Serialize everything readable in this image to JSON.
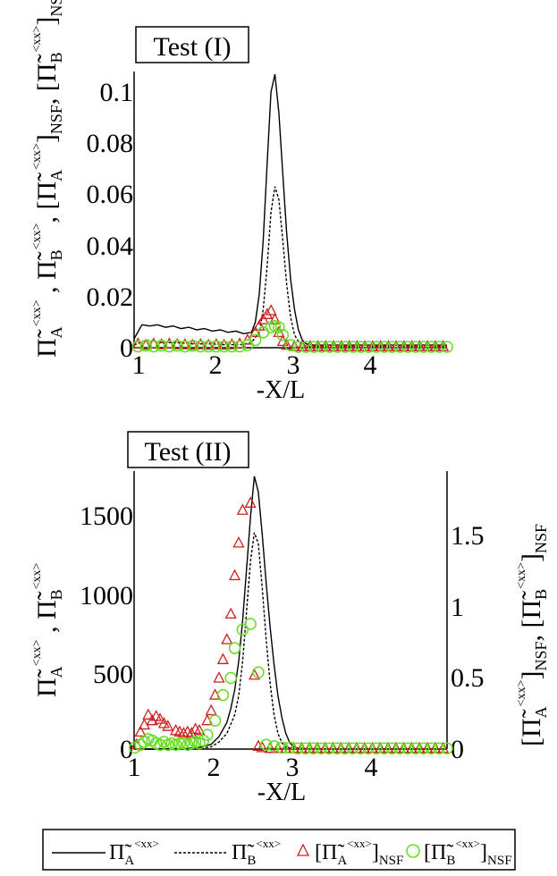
{
  "chart_data": [
    {
      "type": "line",
      "title": "Test (I)",
      "xlabel": "-X/L",
      "ylabel": "Π̃A^<xx>, Π̃B^<xx>, [Π̃A^<xx>]NSF, [Π̃B^<xx>]NSF",
      "xlim": [
        0.95,
        4.95
      ],
      "ylim": [
        0,
        0.107
      ],
      "x_ticks": [
        "1",
        "2",
        "3",
        "4"
      ],
      "y_ticks": [
        "0",
        "0.02",
        "0.04",
        "0.06",
        "0.08",
        "0.1"
      ],
      "series": [
        {
          "name": "Pi_A",
          "style": "solid",
          "x": [
            0.95,
            1.05,
            1.15,
            1.25,
            1.35,
            1.45,
            1.55,
            1.65,
            1.75,
            1.85,
            1.95,
            2.05,
            2.15,
            2.25,
            2.35,
            2.45,
            2.5,
            2.55,
            2.6,
            2.65,
            2.7,
            2.75,
            2.8,
            2.85,
            2.9,
            2.95,
            3.0,
            3.05,
            3.1,
            3.15,
            3.25,
            3.5,
            4.0,
            4.5,
            4.95
          ],
          "y": [
            0.0035,
            0.009,
            0.0085,
            0.009,
            0.008,
            0.0085,
            0.0075,
            0.008,
            0.007,
            0.0075,
            0.0065,
            0.007,
            0.006,
            0.0065,
            0.0055,
            0.006,
            0.01,
            0.021,
            0.042,
            0.072,
            0.1,
            0.107,
            0.092,
            0.068,
            0.045,
            0.027,
            0.015,
            0.007,
            0.003,
            0.0015,
            0.001,
            0.001,
            0.001,
            0.001,
            0.001
          ]
        },
        {
          "name": "Pi_B",
          "style": "dashed",
          "x": [
            0.95,
            1.1,
            1.3,
            1.5,
            1.7,
            1.9,
            2.1,
            2.3,
            2.45,
            2.55,
            2.6,
            2.65,
            2.7,
            2.75,
            2.8,
            2.85,
            2.9,
            2.95,
            3.0,
            3.05,
            3.1,
            3.2,
            3.5,
            4.0,
            4.95
          ],
          "y": [
            0.001,
            0.003,
            0.002,
            0.002,
            0.0015,
            0.0015,
            0.0012,
            0.0012,
            0.002,
            0.006,
            0.015,
            0.032,
            0.053,
            0.063,
            0.058,
            0.042,
            0.025,
            0.012,
            0.005,
            0.0025,
            0.001,
            0.0005,
            0.0005,
            0.0005,
            0.0005
          ]
        },
        {
          "name": "Pi_A_NSF",
          "marker": "triangle",
          "color": "#cc2222",
          "x": [
            1.0,
            1.1,
            1.2,
            1.3,
            1.4,
            1.5,
            1.6,
            1.7,
            1.8,
            1.9,
            2.0,
            2.1,
            2.2,
            2.3,
            2.4,
            2.5,
            2.55,
            2.6,
            2.65,
            2.7,
            2.75,
            2.8,
            2.85,
            2.9,
            3.0,
            3.1,
            3.2,
            3.3,
            3.4,
            3.5,
            3.6,
            3.7,
            3.8,
            3.9,
            4.0,
            4.1,
            4.2,
            4.3,
            4.4,
            4.5,
            4.6,
            4.7,
            4.8,
            4.9
          ],
          "y": [
            0.0015,
            0.001,
            0.0015,
            0.0012,
            0.0015,
            0.0012,
            0.0012,
            0.001,
            0.0012,
            0.001,
            0.0012,
            0.001,
            0.0012,
            0.0015,
            0.003,
            0.006,
            0.0085,
            0.011,
            0.013,
            0.0145,
            0.011,
            0.006,
            0.0025,
            0.001,
            0.0005,
            0.0005,
            0.0005,
            0.0005,
            0.0005,
            0.0005,
            0.0005,
            0.0005,
            0.0005,
            0.0005,
            0.0005,
            0.0005,
            0.0005,
            0.0005,
            0.0005,
            0.0005,
            0.0005,
            0.0005,
            0.0005,
            0.0005
          ]
        },
        {
          "name": "Pi_B_NSF",
          "marker": "circle",
          "color": "#66dd22",
          "x": [
            1.0,
            1.1,
            1.2,
            1.3,
            1.4,
            1.5,
            1.6,
            1.7,
            1.8,
            1.9,
            2.0,
            2.1,
            2.2,
            2.3,
            2.4,
            2.5,
            2.6,
            2.7,
            2.75,
            2.8,
            2.85,
            2.95,
            3.05,
            3.15,
            3.25,
            3.35,
            3.45,
            3.55,
            3.65,
            3.75,
            3.85,
            3.95,
            4.05,
            4.15,
            4.25,
            4.35,
            4.45,
            4.55,
            4.65,
            4.75,
            4.85,
            4.95
          ],
          "y": [
            0.0005,
            0.0008,
            0.0005,
            0.0008,
            0.0005,
            0.0008,
            0.0005,
            0.0008,
            0.0005,
            0.0005,
            0.0005,
            0.0005,
            0.0005,
            0.0005,
            0.001,
            0.003,
            0.006,
            0.008,
            0.0085,
            0.008,
            0.005,
            0.001,
            0.0003,
            0.0003,
            0.0003,
            0.0003,
            0.0003,
            0.0003,
            0.0003,
            0.0003,
            0.0003,
            0.0003,
            0.0003,
            0.0003,
            0.0003,
            0.0003,
            0.0003,
            0.0003,
            0.0003,
            0.0003,
            0.0003,
            0.0003
          ]
        }
      ]
    },
    {
      "type": "line",
      "title": "Test (II)",
      "xlabel": "-X/L",
      "ylabel_left": "Π̃A^<xx>, Π̃B^<xx>",
      "ylabel_right": "[Π̃A^<xx>]NSF, [Π̃B^<xx>]NSF",
      "xlim": [
        0.97,
        4.95
      ],
      "ylim_left": [
        0,
        1750
      ],
      "ylim_right": [
        0,
        1.93
      ],
      "x_ticks": [
        "1",
        "2",
        "3",
        "4"
      ],
      "y_ticks_left": [
        "0",
        "500",
        "1000",
        "1500"
      ],
      "y_ticks_right": [
        "0",
        "0.5",
        "1",
        "1.5"
      ],
      "series": [
        {
          "name": "Pi_A",
          "style": "solid",
          "axis": "left",
          "x": [
            0.97,
            1.2,
            1.5,
            1.8,
            1.95,
            2.05,
            2.15,
            2.2,
            2.25,
            2.3,
            2.35,
            2.4,
            2.45,
            2.5,
            2.55,
            2.6,
            2.65,
            2.7,
            2.75,
            2.8,
            2.85,
            2.9,
            2.95,
            3.0,
            3.05,
            3.15,
            3.5,
            4.0,
            4.95
          ],
          "y": [
            0,
            0,
            2,
            10,
            30,
            80,
            170,
            260,
            380,
            560,
            820,
            1150,
            1480,
            1740,
            1640,
            1370,
            1060,
            780,
            540,
            340,
            200,
            100,
            40,
            15,
            5,
            2,
            0,
            0,
            0
          ]
        },
        {
          "name": "Pi_B",
          "style": "dashed",
          "axis": "left",
          "x": [
            0.97,
            1.5,
            1.8,
            1.95,
            2.05,
            2.15,
            2.25,
            2.3,
            2.35,
            2.4,
            2.45,
            2.5,
            2.55,
            2.6,
            2.65,
            2.7,
            2.75,
            2.8,
            2.85,
            2.9,
            3.0,
            3.5,
            4.95
          ],
          "y": [
            0,
            0,
            2,
            15,
            45,
            100,
            220,
            340,
            560,
            880,
            1200,
            1380,
            1310,
            1030,
            700,
            420,
            220,
            100,
            40,
            12,
            2,
            0,
            0
          ]
        },
        {
          "name": "Pi_A_NSF",
          "marker": "triangle",
          "color": "#cc2222",
          "axis": "right",
          "x": [
            1.0,
            1.05,
            1.1,
            1.15,
            1.2,
            1.25,
            1.3,
            1.35,
            1.4,
            1.5,
            1.55,
            1.6,
            1.65,
            1.7,
            1.75,
            1.8,
            1.9,
            1.95,
            2.0,
            2.05,
            2.1,
            2.15,
            2.2,
            2.25,
            2.3,
            2.35,
            2.45,
            2.5,
            2.55,
            2.6,
            2.7,
            2.8,
            2.9,
            3.0,
            3.1,
            3.2,
            3.3,
            3.4,
            3.5,
            3.6,
            3.7,
            3.8,
            3.9,
            4.0,
            4.1,
            4.2,
            4.3,
            4.4,
            4.5,
            4.6,
            4.7,
            4.8,
            4.9
          ],
          "y": [
            0.03,
            0.12,
            0.17,
            0.24,
            0.2,
            0.23,
            0.21,
            0.18,
            0.16,
            0.13,
            0.12,
            0.11,
            0.12,
            0.11,
            0.14,
            0.13,
            0.2,
            0.27,
            0.38,
            0.5,
            0.63,
            0.77,
            0.95,
            1.22,
            1.45,
            1.68,
            1.73,
            0.52,
            0.02,
            0.01,
            0.005,
            0.005,
            0.005,
            0.005,
            0.005,
            0.005,
            0.005,
            0.005,
            0.005,
            0.005,
            0.005,
            0.005,
            0.005,
            0.005,
            0.005,
            0.005,
            0.005,
            0.005,
            0.005,
            0.005,
            0.005,
            0.005,
            0.005
          ]
        },
        {
          "name": "Pi_B_NSF",
          "marker": "circle",
          "color": "#66dd22",
          "axis": "right",
          "x": [
            0.98,
            1.05,
            1.1,
            1.15,
            1.2,
            1.25,
            1.3,
            1.35,
            1.4,
            1.45,
            1.5,
            1.55,
            1.6,
            1.65,
            1.7,
            1.75,
            1.8,
            1.85,
            1.9,
            2.0,
            2.1,
            2.2,
            2.25,
            2.35,
            2.45,
            2.55,
            2.65,
            2.75,
            2.85,
            2.95,
            3.05,
            3.15,
            3.25,
            3.35,
            3.45,
            3.55,
            3.65,
            3.75,
            3.85,
            3.95,
            4.05,
            4.15,
            4.25,
            4.35,
            4.45,
            4.55,
            4.65,
            4.75,
            4.85,
            4.95
          ],
          "y": [
            0.01,
            0.03,
            0.05,
            0.07,
            0.06,
            0.04,
            0.03,
            0.05,
            0.03,
            0.04,
            0.03,
            0.04,
            0.04,
            0.03,
            0.04,
            0.05,
            0.04,
            0.06,
            0.1,
            0.2,
            0.38,
            0.5,
            0.71,
            0.84,
            0.88,
            0.54,
            0.03,
            0.02,
            0.01,
            0.01,
            0.005,
            0.005,
            0.005,
            0.005,
            0.005,
            0.005,
            0.005,
            0.005,
            0.005,
            0.005,
            0.005,
            0.005,
            0.005,
            0.005,
            0.005,
            0.005,
            0.005,
            0.005,
            0.005,
            0.005
          ]
        }
      ]
    }
  ],
  "legend": {
    "placement": "bottom",
    "entries": [
      {
        "symbol": "Π̃",
        "sub": "A",
        "sup": "<xx>"
      },
      {
        "symbol": "Π̃",
        "sub": "B",
        "sup": "<xx>"
      },
      {
        "symbol": "[Π̃",
        "sub": "A",
        "sup": "<xx>",
        "close": "]",
        "tail": "NSF"
      },
      {
        "symbol": "[Π̃",
        "sub": "B",
        "sup": "<xx>",
        "close": "]",
        "tail": "NSF"
      }
    ]
  },
  "colors": {
    "triangle": "#cc2222",
    "circle": "#66dd22",
    "line": "#000000"
  }
}
